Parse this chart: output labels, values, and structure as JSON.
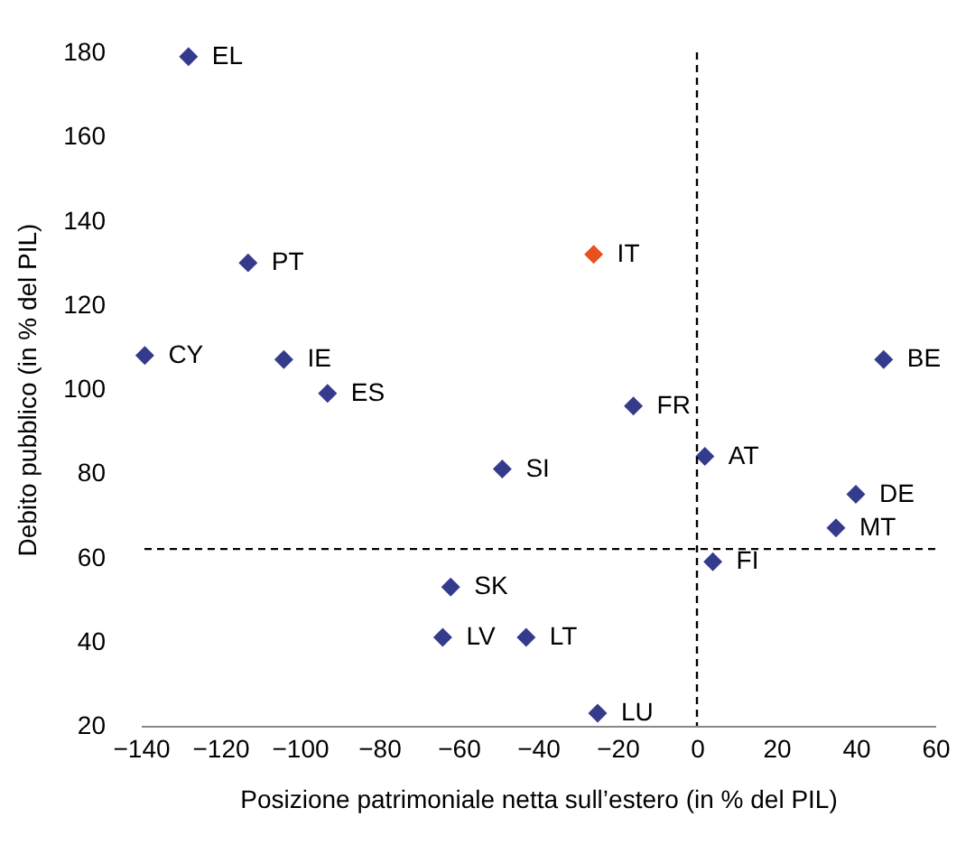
{
  "chart_data": {
    "type": "scatter",
    "xlabel": "Posizione patrimoniale netta sull’estero (in % del PIL)",
    "ylabel": "Debito pubblico (in % del PIL)",
    "x": [
      -128,
      -113,
      -26,
      -139,
      -104,
      -93,
      -16,
      47,
      2,
      -49,
      40,
      35,
      4,
      -62,
      -64,
      -43,
      -25
    ],
    "values": [
      179,
      130,
      132,
      108,
      107,
      99,
      96,
      107,
      84,
      81,
      75,
      67,
      59,
      53,
      41,
      41,
      23
    ],
    "colors": [
      "#353b8c",
      "#353b8c",
      "#e8501e",
      "#353b8c",
      "#353b8c",
      "#353b8c",
      "#353b8c",
      "#353b8c",
      "#353b8c",
      "#353b8c",
      "#353b8c",
      "#353b8c",
      "#353b8c",
      "#353b8c",
      "#353b8c",
      "#353b8c",
      "#353b8c"
    ],
    "annotations": [
      {
        "text": "EL",
        "x": -128,
        "y": 179
      },
      {
        "text": "PT",
        "x": -113,
        "y": 130
      },
      {
        "text": "IT",
        "x": -26,
        "y": 132
      },
      {
        "text": "CY",
        "x": -139,
        "y": 108
      },
      {
        "text": "IE",
        "x": -104,
        "y": 107
      },
      {
        "text": "ES",
        "x": -93,
        "y": 99
      },
      {
        "text": "FR",
        "x": -16,
        "y": 96
      },
      {
        "text": "BE",
        "x": 47,
        "y": 107
      },
      {
        "text": "AT",
        "x": 2,
        "y": 84
      },
      {
        "text": "SI",
        "x": -49,
        "y": 81
      },
      {
        "text": "DE",
        "x": 40,
        "y": 75
      },
      {
        "text": "MT",
        "x": 35,
        "y": 67
      },
      {
        "text": "FI",
        "x": 4,
        "y": 59
      },
      {
        "text": "SK",
        "x": -62,
        "y": 53
      },
      {
        "text": "LV",
        "x": -64,
        "y": 41
      },
      {
        "text": "LT",
        "x": -43,
        "y": 41
      },
      {
        "text": "LU",
        "x": -25,
        "y": 23
      }
    ],
    "xlim": [
      -140,
      60
    ],
    "xticks": [
      -140,
      -120,
      -100,
      -80,
      -60,
      -40,
      -20,
      0,
      20,
      40,
      60
    ],
    "ylim": [
      20,
      180
    ],
    "yticks": [
      20,
      40,
      60,
      80,
      100,
      120,
      140,
      160,
      180
    ],
    "ref_lines": [
      {
        "axis": "x",
        "value": 0,
        "color": "#000000",
        "line_style": "dashed"
      },
      {
        "axis": "y",
        "value": 62,
        "color": "#000000",
        "line_style": "dashed"
      }
    ],
    "marker": "diamond",
    "grid": false
  }
}
